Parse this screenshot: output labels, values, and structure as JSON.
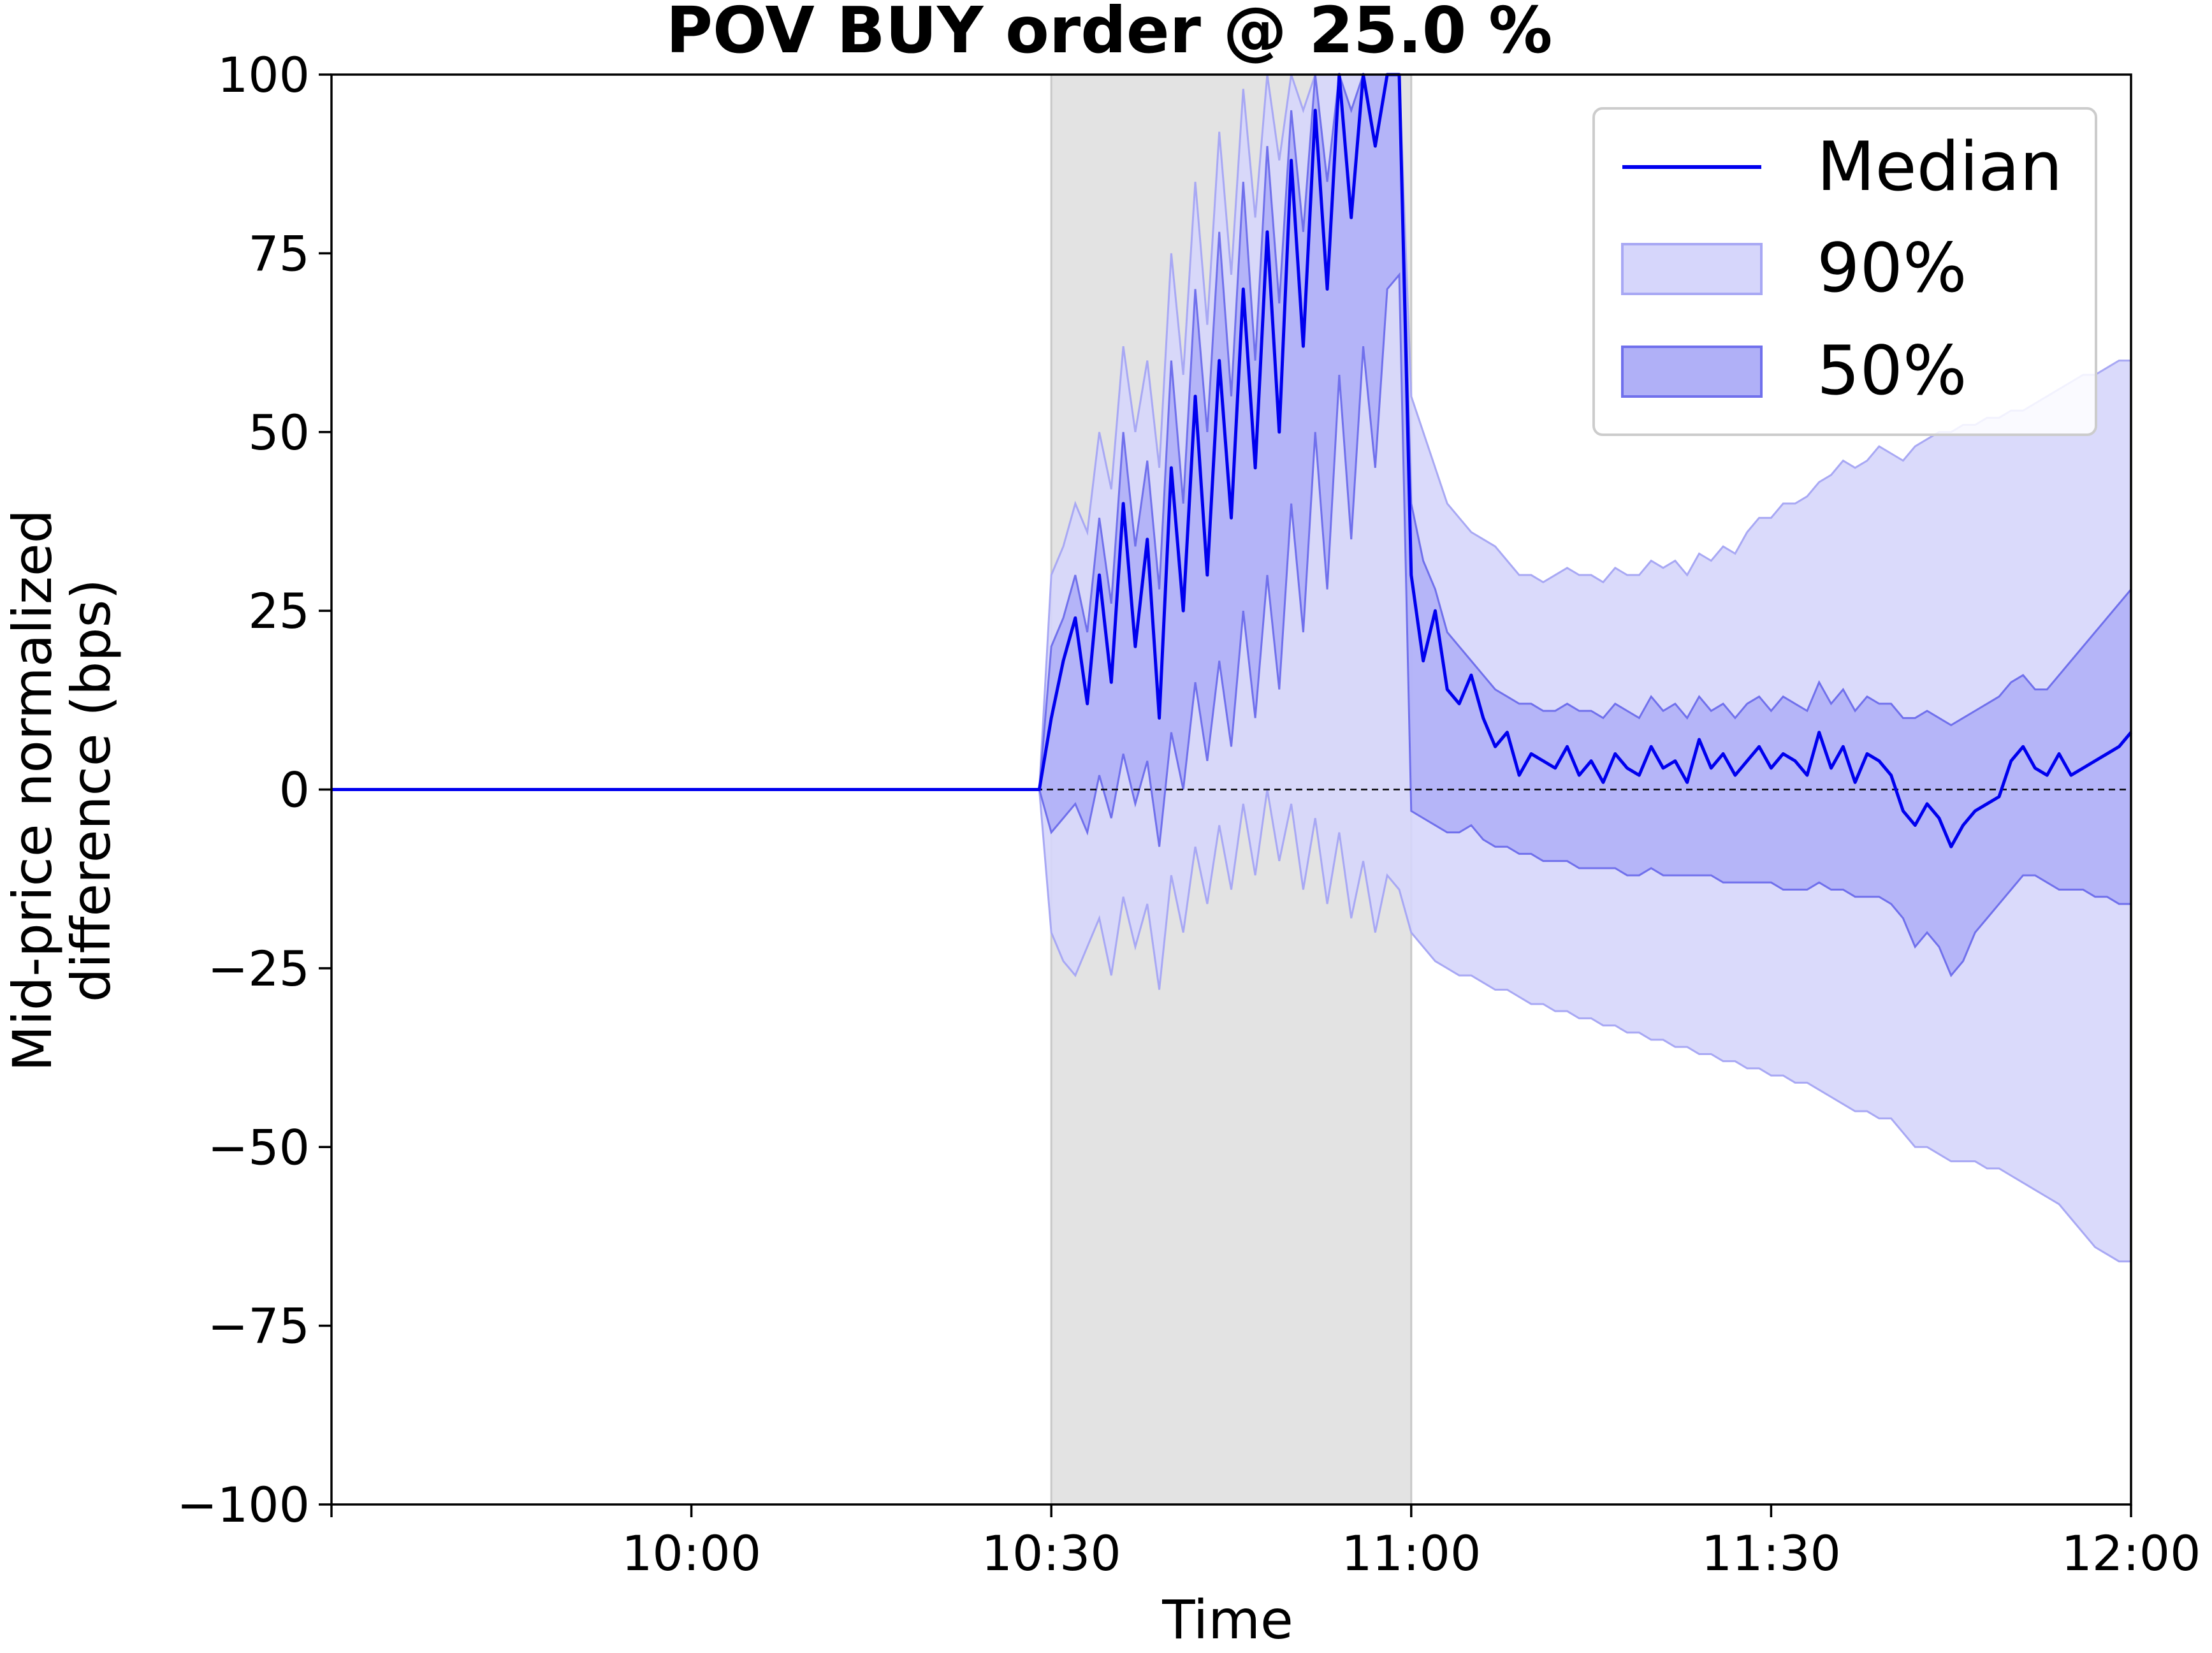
{
  "chart_data": {
    "type": "line",
    "title": "POV BUY order @ 25.0 %",
    "xlabel": "Time",
    "ylabel_lines": [
      "Mid-price normalized",
      "difference (bps)"
    ],
    "x_range": [
      "09:30",
      "12:00"
    ],
    "ylim": [
      -100,
      100
    ],
    "x_ticks": [
      "10:00",
      "10:30",
      "11:00",
      "11:30",
      "12:00"
    ],
    "y_ticks": [
      100,
      75,
      50,
      25,
      0,
      -25,
      -50,
      -75,
      -100
    ],
    "y_tick_labels": [
      "100",
      "75",
      "50",
      "25",
      "0",
      "−25",
      "−50",
      "−75",
      "−100"
    ],
    "shaded_interval": [
      "10:30",
      "11:00"
    ],
    "reference_line": 0,
    "grid": false,
    "legend_placement": "top-right",
    "colors": {
      "median": "#0000ee",
      "band90": "#d6d6fb",
      "band90_edge": "#a8a8f4",
      "band50": "#b0b0f7",
      "band50_edge": "#7070ec",
      "shade": "#e3e3e3"
    },
    "series": [
      {
        "name": "Median",
        "x": [
          "10:29",
          "10:30",
          "10:31",
          "10:32",
          "10:33",
          "10:34",
          "10:35",
          "10:36",
          "10:37",
          "10:38",
          "10:39",
          "10:40",
          "10:41",
          "10:42",
          "10:43",
          "10:44",
          "10:45",
          "10:46",
          "10:47",
          "10:48",
          "10:49",
          "10:50",
          "10:51",
          "10:52",
          "10:53",
          "10:54",
          "10:55",
          "10:56",
          "10:57",
          "10:58",
          "10:59",
          "11:00",
          "11:01",
          "11:02",
          "11:03",
          "11:04",
          "11:05",
          "11:06",
          "11:07",
          "11:08",
          "11:09",
          "11:10",
          "11:11",
          "11:12",
          "11:13",
          "11:14",
          "11:15",
          "11:16",
          "11:17",
          "11:18",
          "11:19",
          "11:20",
          "11:21",
          "11:22",
          "11:23",
          "11:24",
          "11:25",
          "11:26",
          "11:27",
          "11:28",
          "11:29",
          "11:30",
          "11:31",
          "11:32",
          "11:33",
          "11:34",
          "11:35",
          "11:36",
          "11:37",
          "11:38",
          "11:39",
          "11:40",
          "11:41",
          "11:42",
          "11:43",
          "11:44",
          "11:45",
          "11:46",
          "11:47",
          "11:48",
          "11:49",
          "11:50",
          "11:51",
          "11:52",
          "11:53",
          "11:54",
          "11:55",
          "11:56",
          "11:57",
          "11:58",
          "11:59",
          "12:00"
        ],
        "y": [
          0,
          10,
          18,
          24,
          12,
          30,
          15,
          40,
          20,
          35,
          10,
          45,
          25,
          55,
          30,
          60,
          38,
          70,
          45,
          78,
          50,
          88,
          62,
          95,
          70,
          100,
          80,
          100,
          90,
          100,
          100,
          30,
          18,
          25,
          14,
          12,
          16,
          10,
          6,
          8,
          2,
          5,
          4,
          3,
          6,
          2,
          4,
          1,
          5,
          3,
          2,
          6,
          3,
          4,
          1,
          7,
          3,
          5,
          2,
          4,
          6,
          3,
          5,
          4,
          2,
          8,
          3,
          6,
          1,
          5,
          4,
          2,
          -3,
          -5,
          -2,
          -4,
          -8,
          -5,
          -3,
          -2,
          -1,
          4,
          6,
          3,
          2,
          5,
          2,
          3,
          4,
          5,
          6,
          8
        ]
      },
      {
        "name": "50%",
        "upper": [
          0,
          20,
          24,
          30,
          22,
          38,
          26,
          50,
          34,
          46,
          28,
          60,
          40,
          70,
          50,
          78,
          55,
          85,
          60,
          90,
          68,
          95,
          78,
          100,
          85,
          100,
          95,
          100,
          100,
          100,
          100,
          40,
          32,
          28,
          22,
          20,
          18,
          16,
          14,
          13,
          12,
          12,
          11,
          11,
          12,
          11,
          11,
          10,
          12,
          11,
          10,
          13,
          11,
          12,
          10,
          13,
          11,
          12,
          10,
          12,
          13,
          11,
          13,
          12,
          11,
          15,
          12,
          14,
          11,
          13,
          12,
          12,
          10,
          10,
          11,
          10,
          9,
          10,
          11,
          12,
          13,
          15,
          16,
          14,
          14,
          16,
          18,
          20,
          22,
          24,
          26,
          28
        ],
        "lower": [
          0,
          -6,
          -4,
          -2,
          -6,
          2,
          -4,
          5,
          -2,
          4,
          -8,
          8,
          0,
          15,
          4,
          18,
          6,
          25,
          10,
          30,
          14,
          40,
          22,
          50,
          28,
          58,
          35,
          62,
          45,
          70,
          72,
          -3,
          -4,
          -5,
          -6,
          -6,
          -5,
          -7,
          -8,
          -8,
          -9,
          -9,
          -10,
          -10,
          -10,
          -11,
          -11,
          -11,
          -11,
          -12,
          -12,
          -11,
          -12,
          -12,
          -12,
          -12,
          -12,
          -13,
          -13,
          -13,
          -13,
          -13,
          -14,
          -14,
          -14,
          -13,
          -14,
          -14,
          -15,
          -15,
          -15,
          -16,
          -18,
          -22,
          -20,
          -22,
          -26,
          -24,
          -20,
          -18,
          -16,
          -14,
          -12,
          -12,
          -13,
          -14,
          -14,
          -14,
          -15,
          -15,
          -16,
          -16
        ]
      },
      {
        "name": "90%",
        "upper": [
          0,
          30,
          34,
          40,
          36,
          50,
          42,
          62,
          50,
          60,
          45,
          75,
          58,
          85,
          65,
          92,
          72,
          98,
          80,
          100,
          88,
          100,
          95,
          100,
          100,
          100,
          100,
          100,
          100,
          100,
          100,
          55,
          50,
          45,
          40,
          38,
          36,
          35,
          34,
          32,
          30,
          30,
          29,
          30,
          31,
          30,
          30,
          29,
          31,
          30,
          30,
          32,
          31,
          32,
          30,
          33,
          32,
          34,
          33,
          36,
          38,
          38,
          40,
          40,
          41,
          43,
          44,
          46,
          45,
          46,
          48,
          47,
          46,
          48,
          49,
          50,
          50,
          51,
          51,
          52,
          52,
          53,
          53,
          54,
          55,
          56,
          57,
          58,
          58,
          59,
          60,
          60
        ],
        "lower": [
          0,
          -20,
          -24,
          -26,
          -22,
          -18,
          -26,
          -15,
          -22,
          -16,
          -28,
          -12,
          -20,
          -8,
          -16,
          -5,
          -14,
          -2,
          -12,
          0,
          -10,
          -2,
          -14,
          -4,
          -16,
          -6,
          -18,
          -10,
          -20,
          -12,
          -14,
          -20,
          -22,
          -24,
          -25,
          -26,
          -26,
          -27,
          -28,
          -28,
          -29,
          -30,
          -30,
          -31,
          -31,
          -32,
          -32,
          -33,
          -33,
          -34,
          -34,
          -35,
          -35,
          -36,
          -36,
          -37,
          -37,
          -38,
          -38,
          -39,
          -39,
          -40,
          -40,
          -41,
          -41,
          -42,
          -43,
          -44,
          -45,
          -45,
          -46,
          -46,
          -48,
          -50,
          -50,
          -51,
          -52,
          -52,
          -52,
          -53,
          -53,
          -54,
          -55,
          -56,
          -57,
          -58,
          -60,
          -62,
          -64,
          -65,
          -66,
          -66
        ]
      }
    ]
  }
}
